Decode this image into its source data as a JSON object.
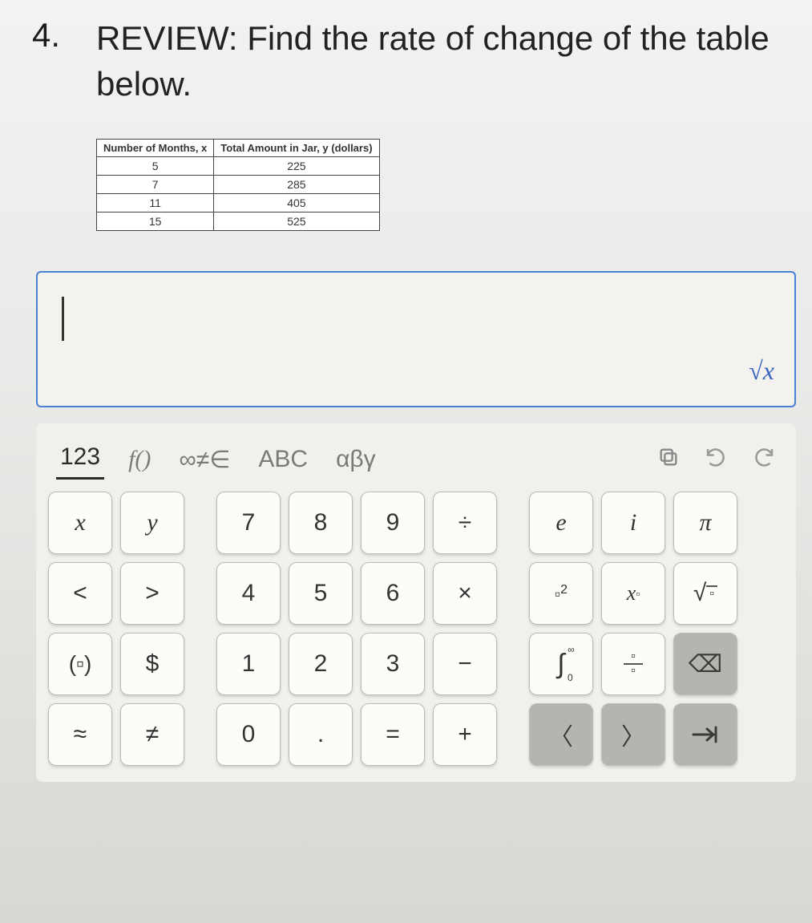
{
  "question": {
    "number": "4.",
    "text": "REVIEW: Find the rate of change of the table below."
  },
  "table": {
    "columns": [
      "Number of Months, x",
      "Total Amount in Jar, y (dollars)"
    ],
    "rows": [
      [
        "5",
        "225"
      ],
      [
        "7",
        "285"
      ],
      [
        "11",
        "405"
      ],
      [
        "15",
        "525"
      ]
    ],
    "border_color": "#444444",
    "background_color": "#ffffff"
  },
  "input": {
    "value": "",
    "sqrt_label": "√x",
    "border_color": "#4a7fd6"
  },
  "keyboard": {
    "tabs": {
      "active": "123",
      "items": [
        "123",
        "f()",
        "∞≠∈",
        "ABC",
        "αβγ"
      ]
    },
    "right_icons": {
      "copy": "⿻",
      "undo": "↶",
      "redo": "↷"
    },
    "rows": [
      [
        {
          "label": "x",
          "name": "var-x",
          "italic": true
        },
        {
          "label": "y",
          "name": "var-y",
          "italic": true
        },
        null,
        {
          "label": "7",
          "name": "digit-7"
        },
        {
          "label": "8",
          "name": "digit-8"
        },
        {
          "label": "9",
          "name": "digit-9"
        },
        {
          "label": "÷",
          "name": "op-divide"
        },
        null,
        {
          "label": "e",
          "name": "const-e",
          "italic": true
        },
        {
          "label": "i",
          "name": "const-i",
          "italic": true
        },
        {
          "label": "π",
          "name": "const-pi",
          "italic": true
        }
      ],
      [
        {
          "label": "<",
          "name": "op-lt"
        },
        {
          "label": ">",
          "name": "op-gt"
        },
        null,
        {
          "label": "4",
          "name": "digit-4"
        },
        {
          "label": "5",
          "name": "digit-5"
        },
        {
          "label": "6",
          "name": "digit-6"
        },
        {
          "label": "×",
          "name": "op-multiply"
        },
        null,
        {
          "label": "▫²",
          "name": "op-square",
          "html": true
        },
        {
          "label": "x▫",
          "name": "op-power",
          "html": true
        },
        {
          "label": "√▫",
          "name": "op-sqrt",
          "html": true
        }
      ],
      [
        {
          "label": "(▫)",
          "name": "op-parens",
          "html": true
        },
        {
          "label": "$",
          "name": "sym-dollar"
        },
        null,
        {
          "label": "1",
          "name": "digit-1"
        },
        {
          "label": "2",
          "name": "digit-2"
        },
        {
          "label": "3",
          "name": "digit-3"
        },
        {
          "label": "−",
          "name": "op-minus"
        },
        null,
        {
          "label": "∫",
          "name": "op-integral",
          "html": true
        },
        {
          "label": "▫/▫",
          "name": "op-fraction",
          "html": true
        },
        {
          "label": "⌫",
          "name": "key-backspace",
          "dark": true
        }
      ],
      [
        {
          "label": "≈",
          "name": "op-approx"
        },
        {
          "label": "≠",
          "name": "op-neq"
        },
        null,
        {
          "label": "0",
          "name": "digit-0"
        },
        {
          "label": ".",
          "name": "sym-dot"
        },
        {
          "label": "=",
          "name": "op-eq"
        },
        {
          "label": "+",
          "name": "op-plus"
        },
        null,
        {
          "label": "〈",
          "name": "key-left",
          "dark": true
        },
        {
          "label": "〉",
          "name": "key-right",
          "dark": true
        },
        {
          "label": "⇥",
          "name": "key-enter",
          "dark": true,
          "html": true
        }
      ]
    ],
    "colors": {
      "key_bg": "#fdfcf8",
      "key_dark_bg": "#b6b4ae",
      "key_border": "#bbbbbb",
      "panel_bg": "#f1f0eb"
    }
  }
}
